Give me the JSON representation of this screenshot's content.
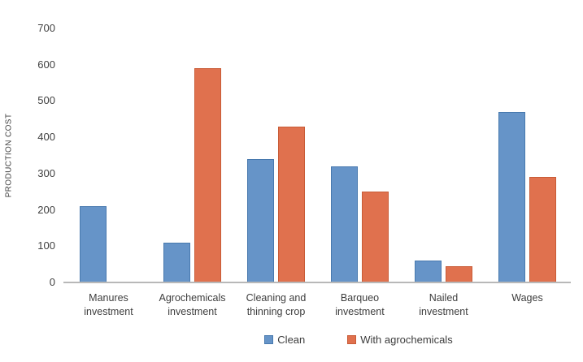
{
  "chart_data": {
    "type": "bar",
    "title": "",
    "ylabel": "PRODUCTION COST",
    "xlabel": "",
    "ylim": [
      0,
      700
    ],
    "yticks": [
      0,
      100,
      200,
      300,
      400,
      500,
      600,
      700
    ],
    "grid": false,
    "legend_position": "bottom",
    "categories": [
      "Manures investment",
      "Agrochemicals investment",
      "Cleaning and thinning crop",
      "Barqueo investment",
      "Nailed investment",
      "Wages"
    ],
    "categories_lines": [
      [
        "Manures",
        "investment"
      ],
      [
        "Agrochemicals",
        "investment"
      ],
      [
        "Cleaning and",
        "thinning crop"
      ],
      [
        "Barqueo",
        "investment"
      ],
      [
        "Nailed",
        "investment"
      ],
      [
        "Wages"
      ]
    ],
    "series": [
      {
        "name": "Clean",
        "color": "#6694c8",
        "border_color": "#4879ae",
        "values": [
          210,
          110,
          340,
          320,
          60,
          470
        ]
      },
      {
        "name": "With agrochemicals",
        "color": "#e0714e",
        "border_color": "#c95c37",
        "values": [
          0,
          590,
          430,
          250,
          45,
          290
        ]
      }
    ],
    "axis_line_color": "#b8b8b8"
  }
}
